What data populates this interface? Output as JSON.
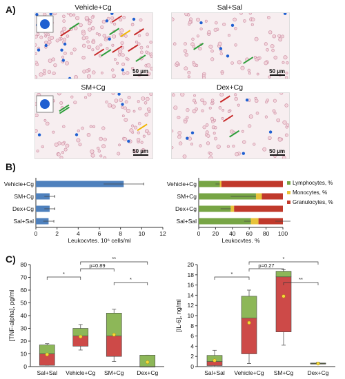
{
  "panels": {
    "a": "A)",
    "b": "B)",
    "c": "C)"
  },
  "micrographs": [
    {
      "title": "Vehicle+Cg",
      "scale": "50 µm"
    },
    {
      "title": "Sal+Sal",
      "scale": "50 µm"
    },
    {
      "title": "SM+Cg",
      "scale": "50 µm"
    },
    {
      "title": "Dex+Cg",
      "scale": "50 µm"
    }
  ],
  "colors": {
    "blue_bar": "#4f81bd",
    "lymph": "#77a545",
    "mono": "#e8c33a",
    "gran": "#c0392b",
    "tnf_upper": "#8db758",
    "tnf_lower": "#cd4a48",
    "mean_dot": "#f3d83a",
    "arrow_red": "#c62828",
    "arrow_green": "#2e9e3a",
    "arrow_yellow": "#f0b400",
    "cell_blue": "#1f5fd1"
  },
  "chart_data": [
    {
      "type": "bar",
      "orientation": "horizontal",
      "categories": [
        "Vehicle+Cg",
        "SM+Cg",
        "Dex+Cg",
        "Sal+Sal"
      ],
      "values": [
        8.3,
        1.3,
        1.3,
        1.2
      ],
      "errors": [
        1.9,
        0.5,
        0.5,
        0.5
      ],
      "xlabel": "Leukocytes, 10⁶ cells/ml",
      "xlim": [
        0,
        12
      ],
      "xticks": [
        "0",
        "2",
        "4",
        "6",
        "8",
        "10",
        "12"
      ]
    },
    {
      "type": "bar",
      "orientation": "horizontal-stacked",
      "categories": [
        "Vehicle+Cg",
        "SM+Cg",
        "Dex+Cg",
        "Sal+Sal"
      ],
      "series": [
        {
          "name": "Lymphocytes, %",
          "values": [
            25,
            68,
            38,
            62
          ],
          "errors": [
            5,
            30,
            12,
            8
          ]
        },
        {
          "name": "Monocytes, %",
          "values": [
            2,
            7,
            4,
            9
          ],
          "errors": [
            0,
            0,
            0,
            0
          ]
        },
        {
          "name": "Granulocytes, %",
          "values": [
            73,
            25,
            58,
            29
          ],
          "errors": [
            0,
            0,
            0,
            9
          ]
        }
      ],
      "xlabel": "Leukocytes, %",
      "xlim": [
        0,
        100
      ],
      "xticks": [
        "0",
        "20",
        "40",
        "60",
        "80",
        "100"
      ]
    },
    {
      "type": "box",
      "categories": [
        "Sal+Sal",
        "Vehicle+Cg",
        "SM+Cg",
        "Dex+Cg"
      ],
      "ylabel": "[TNF-alpha], pg/ml",
      "ylim": [
        0,
        80
      ],
      "yticks": [
        "0",
        "10",
        "20",
        "30",
        "40",
        "50",
        "60",
        "70",
        "80"
      ],
      "boxes": [
        {
          "min": 1,
          "q1": 1,
          "median": 10,
          "q3": 17,
          "max": 18,
          "mean": 9.5
        },
        {
          "min": 13,
          "q1": 16,
          "median": 24,
          "q3": 30,
          "max": 33,
          "mean": 23.5
        },
        {
          "min": 4,
          "q1": 8,
          "median": 24,
          "q3": 42,
          "max": 45,
          "mean": 25
        },
        {
          "min": 0,
          "q1": 0,
          "median": 0,
          "q3": 9,
          "max": 9,
          "mean": 3.5
        }
      ],
      "annotations": [
        {
          "from": 0,
          "to": 1,
          "label": "*"
        },
        {
          "from": 1,
          "to": 2,
          "label": "p=0.89"
        },
        {
          "from": 2,
          "to": 3,
          "label": "*"
        },
        {
          "from": 1,
          "to": 3,
          "label": "**"
        }
      ]
    },
    {
      "type": "box",
      "categories": [
        "Sal+Sal",
        "Vehicle+Cg",
        "SM+Cg",
        "Dex+Cg"
      ],
      "ylabel": "[IL-6], ng/ml",
      "ylim": [
        0,
        20
      ],
      "yticks": [
        "0",
        "2",
        "4",
        "6",
        "8",
        "10",
        "12",
        "14",
        "16",
        "18",
        "20"
      ],
      "boxes": [
        {
          "min": 0,
          "q1": 0.2,
          "median": 1,
          "q3": 2.2,
          "max": 3.2,
          "mean": 1.2
        },
        {
          "min": 0.6,
          "q1": 2.5,
          "median": 9.5,
          "q3": 13.8,
          "max": 15,
          "mean": 8.6
        },
        {
          "min": 4.2,
          "q1": 6.8,
          "median": 17.6,
          "q3": 18.7,
          "max": 19,
          "mean": 13.8
        },
        {
          "min": 0.5,
          "q1": 0.5,
          "median": 0.6,
          "q3": 0.7,
          "max": 0.8,
          "mean": 0.6
        }
      ],
      "annotations": [
        {
          "from": 0,
          "to": 1,
          "label": "*"
        },
        {
          "from": 1,
          "to": 2,
          "label": "p=0.27"
        },
        {
          "from": 2,
          "to": 3,
          "label": "**"
        },
        {
          "from": 1,
          "to": 3,
          "label": "*"
        }
      ]
    }
  ]
}
